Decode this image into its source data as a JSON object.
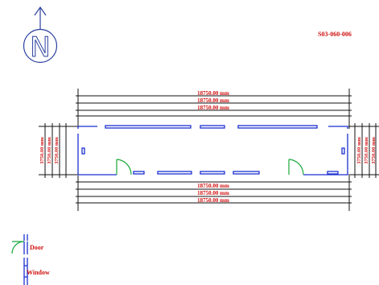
{
  "drawing_code": "S03-060-006",
  "north_label": "N",
  "dimensions": {
    "top": [
      "18750.00 mm",
      "18750.00 mm",
      "18750.00 mm"
    ],
    "bottom": [
      "18750.00 mm",
      "18750.00 mm",
      "18750.00 mm"
    ],
    "left": [
      "3750.00 mm",
      "3750.00 mm",
      "3750.00 mm"
    ],
    "right": [
      "3750.00 mm",
      "3750.00 mm",
      "3750.00 mm"
    ]
  },
  "legend": {
    "door": "Door",
    "window": "Window"
  },
  "colors": {
    "dimension_text": "#d01010",
    "wall": "#1b2fd0",
    "door_swing": "#1aa83a",
    "lines": "#111111"
  }
}
